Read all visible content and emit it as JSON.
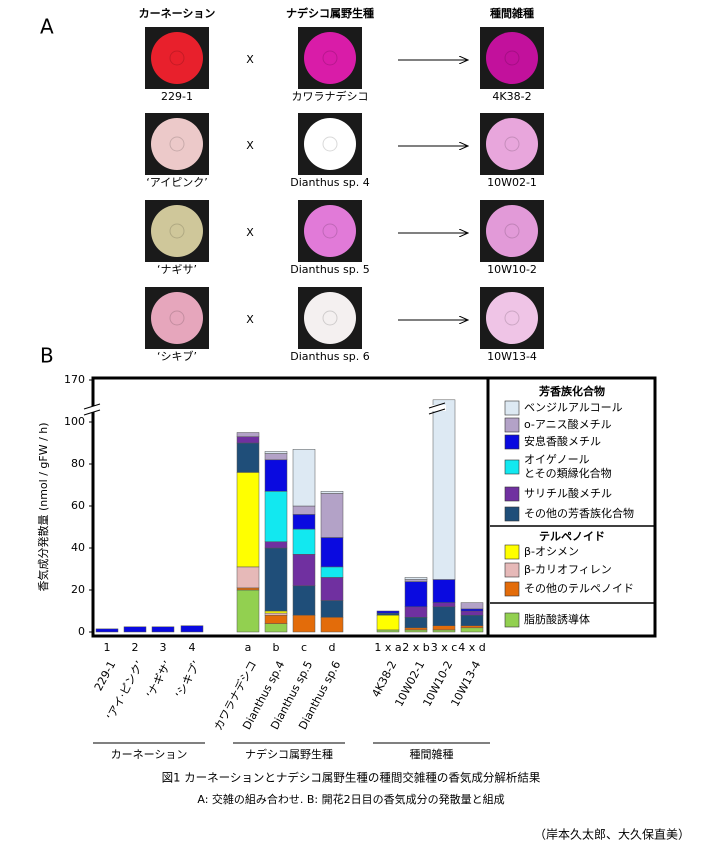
{
  "panel_a": {
    "label": "A",
    "headers": [
      "カーネーション",
      "ナデシコ属野生種",
      "種間雑種"
    ],
    "cross_symbol": "X",
    "rows": [
      [
        "229-1",
        "カワラナデシコ",
        "4K38-2"
      ],
      [
        "‘アイピンク’",
        "Dianthus sp. 4",
        "10W02-1"
      ],
      [
        "‘ナギサ’",
        "Dianthus sp. 5",
        "10W10-2"
      ],
      [
        "‘シキブ’",
        "Dianthus sp. 6",
        "10W13-4"
      ]
    ]
  },
  "chart_data": {
    "type": "bar",
    "stacked": true,
    "label": "B",
    "ylabel": "香気成分発散量 (nmol / gFW / h)",
    "categories": [
      "1",
      "2",
      "3",
      "4",
      "a",
      "b",
      "c",
      "d",
      "1 x a",
      "2 x b",
      "3 x c",
      "4 x d"
    ],
    "sample_names": [
      "229-1",
      "‘アイ·ピンク’",
      "‘ナギサ’",
      "‘シキブ’",
      "カワラナデシコ",
      "Dianthus sp.4",
      "Dianthus sp.5",
      "Dianthus sp.6",
      "4K38-2",
      "10W02-1",
      "10W10-2",
      "10W13-4"
    ],
    "groups": [
      "カーネーション",
      "ナデシコ属野生種",
      "種間雑種"
    ],
    "legend_headings": [
      "芳香族化合物",
      "テルペノイド"
    ],
    "ylim": [
      0,
      170
    ],
    "yticks": [
      0,
      20,
      40,
      60,
      80,
      100,
      170
    ],
    "y_break": [
      100,
      170
    ],
    "series": [
      {
        "name": "ベンジルアルコール",
        "color": "#dde9f3",
        "values": [
          0,
          0,
          0,
          0,
          0,
          1,
          27,
          1,
          0,
          1,
          112,
          0
        ]
      },
      {
        "name": "o-アニス酸メチル",
        "color": "#b3a2c7",
        "values": [
          0,
          0,
          0,
          0,
          2,
          3,
          4,
          21,
          0,
          1,
          0,
          3
        ]
      },
      {
        "name": "安息香酸メチル",
        "color": "#0a0ae0",
        "values": [
          1.5,
          2.5,
          2.5,
          3,
          0,
          15,
          7,
          14,
          1,
          12,
          11,
          1
        ]
      },
      {
        "name": "オイゲノール\nとその類縁化合物",
        "color": "#12e8f0",
        "values": [
          0,
          0,
          0,
          0,
          0,
          24,
          12,
          5,
          0,
          0,
          0,
          0
        ]
      },
      {
        "name": "サリチル酸メチル",
        "color": "#7030a0",
        "values": [
          0,
          0,
          0,
          0,
          3,
          3,
          15,
          11,
          0,
          5,
          2,
          2
        ]
      },
      {
        "name": "その他の芳香族化合物",
        "color": "#1f4e79",
        "values": [
          0,
          0,
          0,
          0,
          14,
          30,
          14,
          8,
          1,
          5,
          9,
          5
        ]
      },
      {
        "name": "β-オシメン",
        "color": "#ffff00",
        "values": [
          0,
          0,
          0,
          0,
          45,
          1,
          0,
          0,
          7,
          0,
          0,
          0
        ]
      },
      {
        "name": "β-カリオフィレン",
        "color": "#e6b9b8",
        "values": [
          0,
          0,
          0,
          0,
          10,
          1,
          0,
          0,
          0,
          0,
          0,
          0
        ]
      },
      {
        "name": "その他のテルペノイド",
        "color": "#e36c0a",
        "values": [
          0,
          0,
          0,
          0,
          1,
          4,
          8,
          7,
          0,
          1,
          2,
          1
        ]
      },
      {
        "name": "脂肪酸誘導体",
        "color": "#92d050",
        "values": [
          0,
          0,
          0,
          0,
          20,
          4,
          0,
          0,
          1,
          1,
          1,
          2
        ]
      }
    ]
  },
  "caption": {
    "title": "図1 カーネーションとナデシコ属野生種の種間交雑種の香気成分解析結果",
    "subtitle": "A: 交雑の組み合わせ.  B: 開花2日目の香気成分の発散量と組成",
    "credit": "（岸本久太郎、大久保直美）"
  }
}
